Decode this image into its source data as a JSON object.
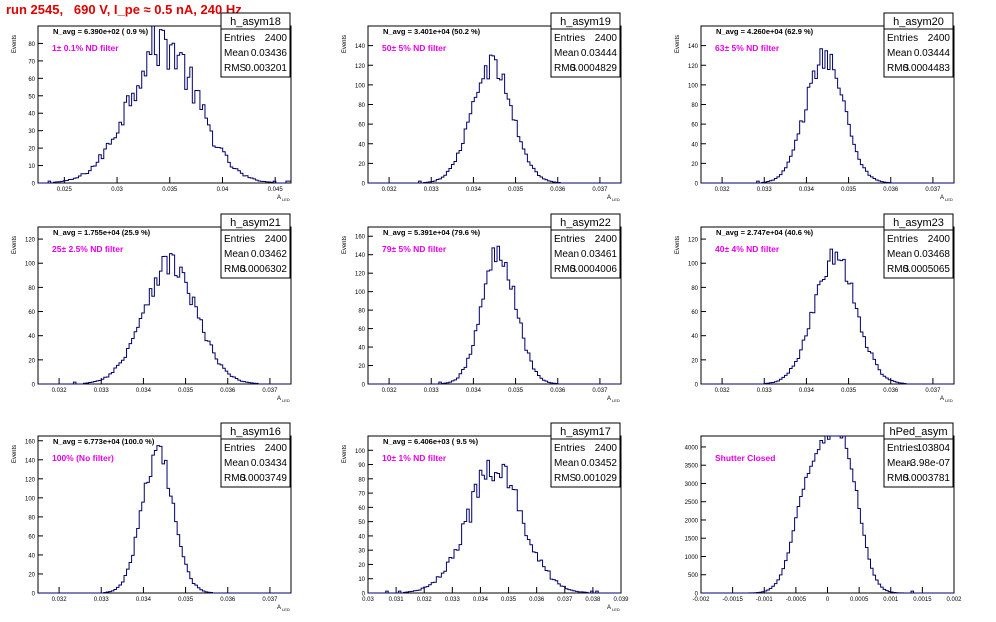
{
  "header": {
    "title": "run 2545,   690 V, I_pe ≈ 0.5 nA, 240 Hz"
  },
  "colors": {
    "hist": "#00006e",
    "title": "#e00000",
    "filter_label": "#e600e6",
    "frame": "#000000"
  },
  "chart_data": [
    {
      "type": "bar",
      "name": "h_asym18",
      "navg": "N_avg = 6.390e+02 ( 0.9 %)",
      "filter": "1± 0.1% ND filter",
      "stats": {
        "Entries": "2400",
        "Mean": "0.03436",
        "RMS": "0.003201"
      },
      "ylabel": "Events",
      "xlabel": "A",
      "xsub": "LED",
      "xlim": [
        0.0225,
        0.0465
      ],
      "ylim": [
        0,
        90
      ],
      "xticks": [
        "0.025",
        "0.03",
        "0.035",
        "0.04",
        "0.045"
      ],
      "xtick_values": [
        0.025,
        0.03,
        0.035,
        0.04,
        0.045
      ],
      "yticks": [
        0,
        10,
        20,
        30,
        40,
        50,
        60,
        70,
        80
      ],
      "mean": 0.03436,
      "sigma": 0.003201,
      "peak": 80,
      "bins": 100,
      "noise": 0.18,
      "bimodal": false
    },
    {
      "type": "bar",
      "name": "h_asym19",
      "navg": "N_avg = 3.401e+04 (50.2 %)",
      "filter": "50± 5% ND filter",
      "stats": {
        "Entries": "2400",
        "Mean": "0.03444",
        "RMS": "0.0004829"
      },
      "ylabel": "Events",
      "xlabel": "A",
      "xsub": "LED",
      "xlim": [
        0.0315,
        0.0375
      ],
      "ylim": [
        0,
        160
      ],
      "xticks": [
        "0.032",
        "0.033",
        "0.034",
        "0.035",
        "0.036",
        "0.037"
      ],
      "xtick_values": [
        0.032,
        0.033,
        0.034,
        0.035,
        0.036,
        0.037
      ],
      "yticks": [
        0,
        20,
        40,
        60,
        80,
        100,
        120,
        140
      ],
      "mean": 0.03444,
      "sigma": 0.00048,
      "peak": 120,
      "bins": 100,
      "noise": 0.1,
      "bimodal": false
    },
    {
      "type": "bar",
      "name": "h_asym20",
      "navg": "N_avg = 4.260e+04 (62.9 %)",
      "filter": "63± 5% ND filter",
      "stats": {
        "Entries": "2400",
        "Mean": "0.03444",
        "RMS": "0.0004483"
      },
      "ylabel": "Events",
      "xlabel": "A",
      "xsub": "LED",
      "xlim": [
        0.0315,
        0.0375
      ],
      "ylim": [
        0,
        160
      ],
      "xticks": [
        "0.032",
        "0.033",
        "0.034",
        "0.035",
        "0.036",
        "0.037"
      ],
      "xtick_values": [
        0.032,
        0.033,
        0.034,
        0.035,
        0.036,
        0.037
      ],
      "yticks": [
        0,
        20,
        40,
        60,
        80,
        100,
        120,
        140
      ],
      "mean": 0.03444,
      "sigma": 0.00045,
      "peak": 130,
      "bins": 100,
      "noise": 0.1,
      "bimodal": false
    },
    {
      "type": "bar",
      "name": "h_asym21",
      "navg": "N_avg = 1.755e+04 (25.9 %)",
      "filter": "25± 2.5% ND filter",
      "stats": {
        "Entries": "2400",
        "Mean": "0.03462",
        "RMS": "0.0006302"
      },
      "ylabel": "Events",
      "xlabel": "A",
      "xsub": "LED",
      "xlim": [
        0.0315,
        0.0375
      ],
      "ylim": [
        0,
        130
      ],
      "xticks": [
        "0.032",
        "0.033",
        "0.034",
        "0.035",
        "0.036",
        "0.037"
      ],
      "xtick_values": [
        0.032,
        0.033,
        0.034,
        0.035,
        0.036,
        0.037
      ],
      "yticks": [
        0,
        20,
        40,
        60,
        80,
        100,
        120
      ],
      "mean": 0.03462,
      "sigma": 0.00063,
      "peak": 100,
      "bins": 100,
      "noise": 0.12,
      "bimodal": false
    },
    {
      "type": "bar",
      "name": "h_asym22",
      "navg": "N_avg = 5.391e+04 (79.6 %)",
      "filter": "79± 5% ND filter",
      "stats": {
        "Entries": "2400",
        "Mean": "0.03461",
        "RMS": "0.0004006"
      },
      "ylabel": "Events",
      "xlabel": "A",
      "xsub": "LED",
      "xlim": [
        0.0315,
        0.0375
      ],
      "ylim": [
        0,
        170
      ],
      "xticks": [
        "0.032",
        "0.033",
        "0.034",
        "0.035",
        "0.036",
        "0.037"
      ],
      "xtick_values": [
        0.032,
        0.033,
        0.034,
        0.035,
        0.036,
        0.037
      ],
      "yticks": [
        0,
        20,
        40,
        60,
        80,
        100,
        120,
        140,
        160
      ],
      "mean": 0.03461,
      "sigma": 0.0004,
      "peak": 145,
      "bins": 100,
      "noise": 0.1,
      "bimodal": false
    },
    {
      "type": "bar",
      "name": "h_asym23",
      "navg": "N_avg = 2.747e+04 (40.6 %)",
      "filter": "40± 4% ND filter",
      "stats": {
        "Entries": "2400",
        "Mean": "0.03468",
        "RMS": "0.0005065"
      },
      "ylabel": "Events",
      "xlabel": "A",
      "xsub": "LED",
      "xlim": [
        0.0315,
        0.0375
      ],
      "ylim": [
        0,
        130
      ],
      "xticks": [
        "0.032",
        "0.033",
        "0.034",
        "0.035",
        "0.036",
        "0.037"
      ],
      "xtick_values": [
        0.032,
        0.033,
        0.034,
        0.035,
        0.036,
        0.037
      ],
      "yticks": [
        0,
        20,
        40,
        60,
        80,
        100,
        120
      ],
      "mean": 0.03468,
      "sigma": 0.0005,
      "peak": 105,
      "bins": 100,
      "noise": 0.12,
      "bimodal": false
    },
    {
      "type": "bar",
      "name": "h_asym16",
      "navg": "N_avg = 6.773e+04 (100.0 %)",
      "filter": "100% (No filter)",
      "stats": {
        "Entries": "2400",
        "Mean": "0.03434",
        "RMS": "0.0003749"
      },
      "ylabel": "Events",
      "xlabel": "A",
      "xsub": "LED",
      "xlim": [
        0.0315,
        0.0375
      ],
      "ylim": [
        0,
        165
      ],
      "xticks": [
        "0.032",
        "0.033",
        "0.034",
        "0.035",
        "0.036",
        "0.037"
      ],
      "xtick_values": [
        0.032,
        0.033,
        0.034,
        0.035,
        0.036,
        0.037
      ],
      "yticks": [
        0,
        20,
        40,
        60,
        80,
        100,
        120,
        140,
        160
      ],
      "mean": 0.03434,
      "sigma": 0.000375,
      "peak": 145,
      "bins": 100,
      "noise": 0.1,
      "bimodal": false
    },
    {
      "type": "bar",
      "name": "h_asym17",
      "navg": "N_avg = 6.406e+03 ( 9.5 %)",
      "filter": "10± 1% ND filter",
      "stats": {
        "Entries": "2400",
        "Mean": "0.03452",
        "RMS": "0.001029"
      },
      "ylabel": "Events",
      "xlabel": "A",
      "xsub": "LED",
      "xlim": [
        0.03,
        0.039
      ],
      "ylim": [
        0,
        110
      ],
      "xticks": [
        "0.03",
        "0.031",
        "0.032",
        "0.033",
        "0.034",
        "0.035",
        "0.036",
        "0.037",
        "0.038",
        "0.039"
      ],
      "xtick_values": [
        0.03,
        0.031,
        0.032,
        0.033,
        0.034,
        0.035,
        0.036,
        0.037,
        0.038,
        0.039
      ],
      "yticks": [
        0,
        10,
        20,
        30,
        40,
        50,
        60,
        70,
        80,
        90,
        100
      ],
      "mean": 0.03452,
      "sigma": 0.001,
      "peak": 85,
      "bins": 100,
      "noise": 0.16,
      "bimodal": false
    },
    {
      "type": "bar",
      "name": "hPed_asym",
      "navg": "",
      "filter": "Shutter Closed",
      "stats": {
        "Entries": "103804",
        "Mean": "-3.98e-07",
        "RMS": "0.0003781"
      },
      "ylabel": "",
      "xlabel": "",
      "xsub": "",
      "xlim": [
        -0.002,
        0.002
      ],
      "ylim": [
        0,
        4300
      ],
      "xticks": [
        "-0.002",
        "-0.0015",
        "-0.001",
        "-0.0005",
        "0",
        "0.0005",
        "0.001",
        "0.0015",
        "0.002"
      ],
      "xtick_values": [
        -0.002,
        -0.0015,
        -0.001,
        -0.0005,
        0,
        0.0005,
        0.001,
        0.0015,
        0.002
      ],
      "yticks": [
        0,
        500,
        1000,
        1500,
        2000,
        2500,
        3000,
        3500,
        4000
      ],
      "mean": -4e-07,
      "sigma": 0.00038,
      "peak": 4000,
      "bins": 100,
      "noise": 0.03,
      "bimodal": true
    }
  ]
}
